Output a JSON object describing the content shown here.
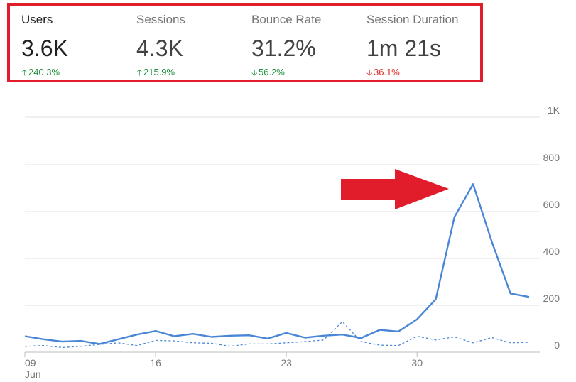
{
  "metrics": [
    {
      "label": "Users",
      "value": "3.6K",
      "change": "240.3%",
      "direction": "up",
      "tone": "good",
      "active": true
    },
    {
      "label": "Sessions",
      "value": "4.3K",
      "change": "215.9%",
      "direction": "up",
      "tone": "good",
      "active": false
    },
    {
      "label": "Bounce Rate",
      "value": "31.2%",
      "change": "56.2%",
      "direction": "down",
      "tone": "good",
      "active": false
    },
    {
      "label": "Session Duration",
      "value": "1m 21s",
      "change": "36.1%",
      "direction": "down",
      "tone": "bad",
      "active": false
    }
  ],
  "colors": {
    "highlight_border": "#e11d2b",
    "arrow": "#e11d2b",
    "series_current": "#4a86d6",
    "series_previous": "#4a86d6",
    "gridline": "#e0e0e0",
    "good_change": "#1e8e3e",
    "bad_change": "#d93025"
  },
  "annotation": {
    "type": "right-arrow",
    "color": "#e11d2b"
  },
  "chart_data": {
    "type": "line",
    "y_ticks": [
      "0",
      "200",
      "400",
      "600",
      "800",
      "1K"
    ],
    "ylim": [
      0,
      1000
    ],
    "x_ticks": [
      {
        "label": "09",
        "sublabel": "Jun",
        "index": 0
      },
      {
        "label": "16",
        "sublabel": "",
        "index": 7
      },
      {
        "label": "23",
        "sublabel": "",
        "index": 14
      },
      {
        "label": "30",
        "sublabel": "",
        "index": 21
      }
    ],
    "x_count": 28,
    "grid": true,
    "series": [
      {
        "style": "solid",
        "values": [
          68,
          55,
          45,
          48,
          35,
          55,
          75,
          90,
          68,
          78,
          65,
          70,
          72,
          58,
          82,
          62,
          70,
          75,
          60,
          95,
          88,
          140,
          225,
          575,
          715,
          470,
          250,
          235
        ]
      },
      {
        "style": "dashed",
        "values": [
          25,
          28,
          20,
          25,
          33,
          40,
          28,
          50,
          48,
          40,
          38,
          25,
          35,
          35,
          40,
          45,
          52,
          130,
          45,
          30,
          28,
          68,
          52,
          65,
          40,
          62,
          40,
          42
        ]
      }
    ]
  }
}
